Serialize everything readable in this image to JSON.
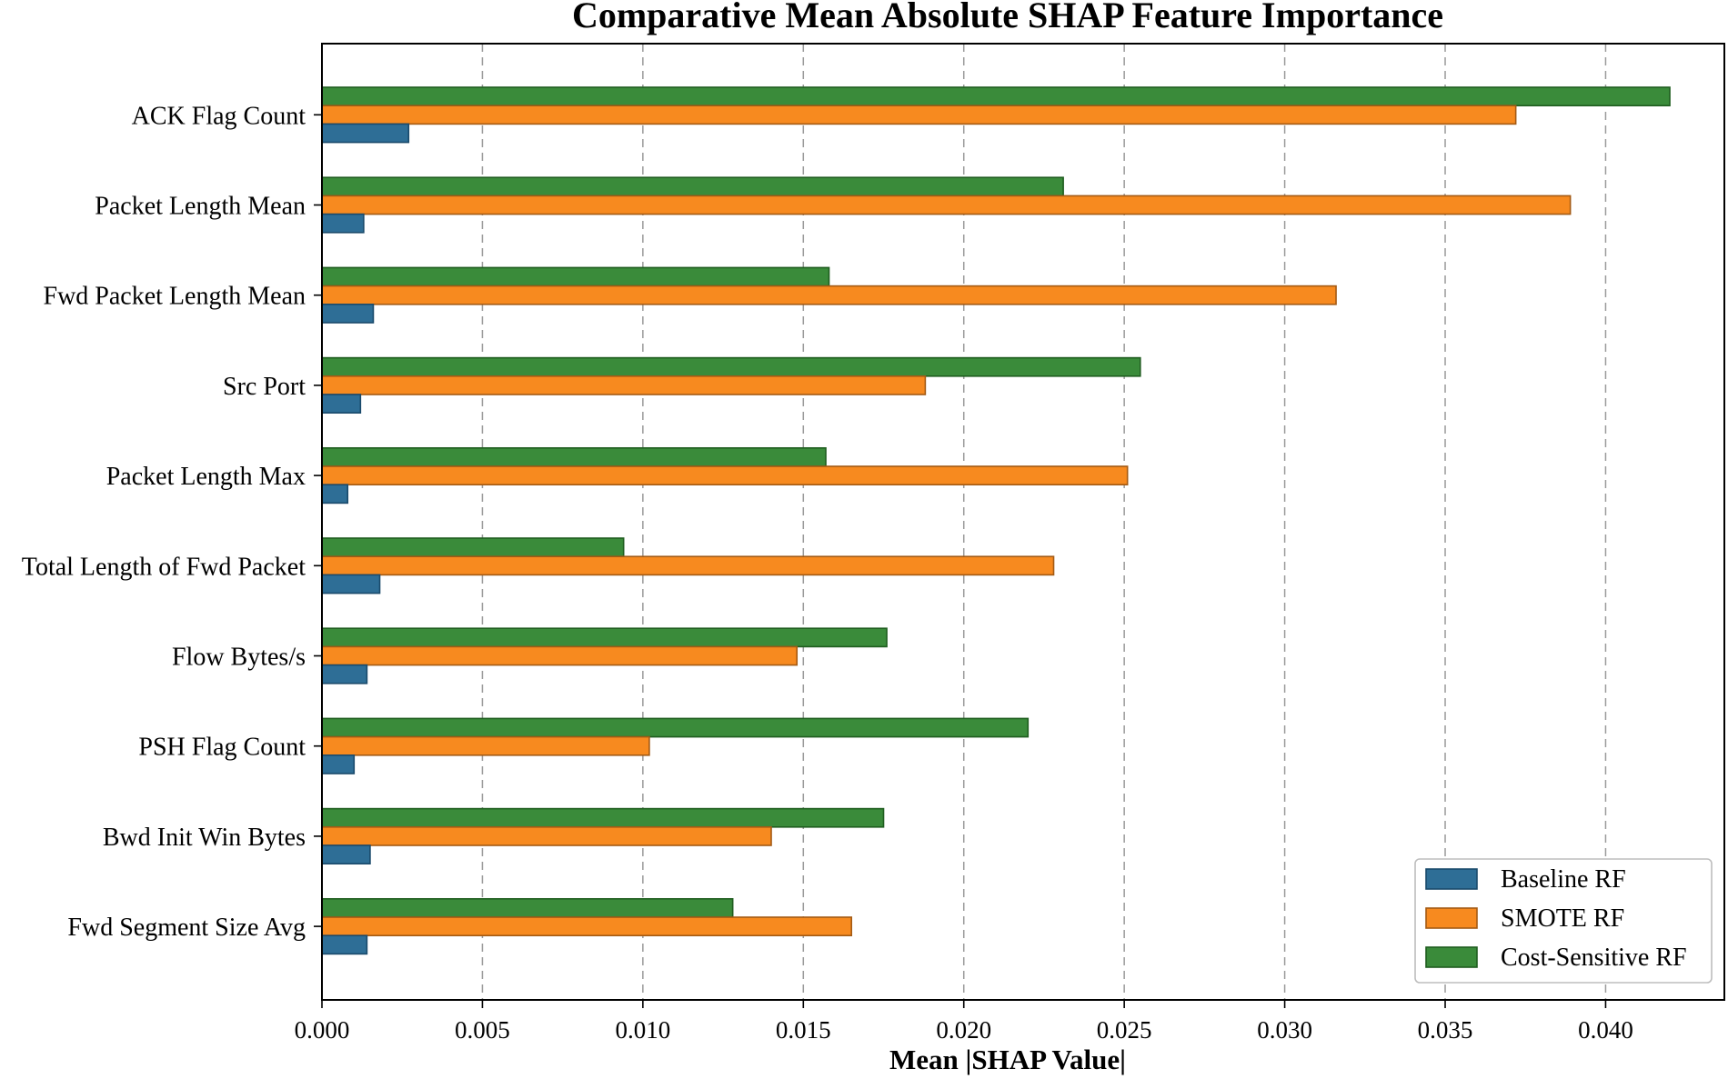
{
  "chart_data": {
    "type": "bar",
    "orientation": "horizontal",
    "title": "Comparative Mean Absolute SHAP Feature Importance",
    "xlabel": "Mean |SHAP Value|",
    "ylabel": "",
    "xlim": [
      0,
      0.0437
    ],
    "x_ticks": [
      "0.000",
      "0.005",
      "0.010",
      "0.015",
      "0.020",
      "0.025",
      "0.030",
      "0.035",
      "0.040"
    ],
    "grid": "vertical dashed",
    "legend_position": "bottom-right",
    "categories": [
      "ACK Flag Count",
      "Packet Length Mean",
      "Fwd Packet Length Mean",
      "Src Port",
      "Packet Length Max",
      "Total Length of Fwd Packet",
      "Flow Bytes/s",
      "PSH Flag Count",
      "Bwd Init Win Bytes",
      "Fwd Segment Size Avg"
    ],
    "series": [
      {
        "name": "Baseline RF",
        "color": "#2e6e96",
        "edge": "#1a4a6b",
        "values": [
          0.0027,
          0.0013,
          0.0016,
          0.0012,
          0.0008,
          0.0018,
          0.0014,
          0.001,
          0.0015,
          0.0014
        ]
      },
      {
        "name": "SMOTE RF",
        "color": "#f78a1f",
        "edge": "#a35a14",
        "values": [
          0.0372,
          0.0389,
          0.0316,
          0.0188,
          0.0251,
          0.0228,
          0.0148,
          0.0102,
          0.014,
          0.0165
        ]
      },
      {
        "name": "Cost-Sensitive RF",
        "color": "#3a8b3a",
        "edge": "#1f5d1f",
        "values": [
          0.042,
          0.0231,
          0.0158,
          0.0255,
          0.0157,
          0.0094,
          0.0176,
          0.022,
          0.0175,
          0.0128
        ]
      }
    ]
  }
}
